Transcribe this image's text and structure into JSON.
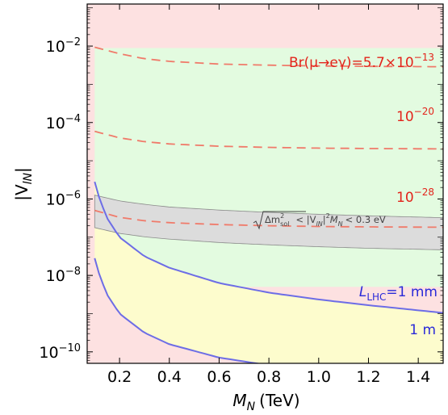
{
  "chart_data": {
    "type": "line",
    "xlabel": "M",
    "xlabel_sub": "N",
    "xlabel_unit": "(TeV)",
    "ylabel": "|V",
    "ylabel_sub": "lN",
    "ylabel_end": "|",
    "xlim": [
      0.07,
      1.5
    ],
    "ylim_log10": [
      -10.3,
      -0.9
    ],
    "x_ticks": [
      0.2,
      0.4,
      0.6,
      0.8,
      1.0,
      1.2,
      1.4
    ],
    "x_tick_labels": [
      "0.2",
      "0.4",
      "0.6",
      "0.8",
      "1.0",
      "1.2",
      "1.4"
    ],
    "y_ticks_exp": [
      -10,
      -8,
      -6,
      -4,
      -2
    ],
    "y_tick_base": "10",
    "y_tick_exps": [
      "−10",
      "−8",
      "−6",
      "−4",
      "−2"
    ],
    "regions": [
      {
        "name": "excluded",
        "color": "#fde1e1"
      },
      {
        "name": "allowed",
        "color": "#e3fbe0"
      },
      {
        "name": "displaced",
        "color": "#fdfccd"
      }
    ],
    "allowed_region_log10": {
      "upper": -2.05,
      "lower_from": "br_20_curve"
    },
    "br_curves": [
      {
        "label": "Br(μ→eγ)=5.7×10",
        "exp": "−13",
        "color": "#f07a6a",
        "x": [
          0.1,
          0.2,
          0.3,
          0.4,
          0.6,
          0.8,
          1.0,
          1.2,
          1.5
        ],
        "y_log10": [
          -2.03,
          -2.2,
          -2.33,
          -2.4,
          -2.47,
          -2.5,
          -2.52,
          -2.53,
          -2.54
        ]
      },
      {
        "label": "10",
        "exp": "−20",
        "color": "#f07a6a",
        "x": [
          0.1,
          0.2,
          0.3,
          0.4,
          0.6,
          0.8,
          1.0,
          1.2,
          1.5
        ],
        "y_log10": [
          -4.23,
          -4.4,
          -4.5,
          -4.56,
          -4.62,
          -4.65,
          -4.67,
          -4.68,
          -4.69
        ]
      },
      {
        "label": "10",
        "exp": "−28",
        "color": "#f07a6a",
        "x": [
          0.1,
          0.2,
          0.3,
          0.4,
          0.6,
          0.8,
          1.0,
          1.2,
          1.5
        ],
        "y_log10": [
          -6.3,
          -6.48,
          -6.57,
          -6.62,
          -6.67,
          -6.7,
          -6.72,
          -6.73,
          -6.74
        ]
      }
    ],
    "solar_band": {
      "label": "< |V",
      "label_sub": "lN",
      "label_mid": "|",
      "label_sup": "2",
      "label_m": "M",
      "label_m_sub": "N",
      "label_end": "< 0.3 eV",
      "label_root": "Δm",
      "label_root_sup": "2",
      "label_root_sub": "sol",
      "color": "#dcdcdc",
      "x": [
        0.1,
        0.2,
        0.3,
        0.4,
        0.6,
        0.8,
        1.0,
        1.2,
        1.5
      ],
      "upper_log10": [
        -5.9,
        -6.05,
        -6.14,
        -6.21,
        -6.29,
        -6.35,
        -6.4,
        -6.44,
        -6.49
      ],
      "lower_log10": [
        -6.75,
        -6.9,
        -6.99,
        -7.05,
        -7.14,
        -7.2,
        -7.25,
        -7.29,
        -7.33
      ]
    },
    "lhc_curves": [
      {
        "label_pre": "L",
        "label_sub": "LHC",
        "label": "=1 mm",
        "color": "#6d6de6",
        "x": [
          0.1,
          0.12,
          0.15,
          0.2,
          0.3,
          0.4,
          0.6,
          0.8,
          1.0,
          1.2,
          1.5
        ],
        "y_log10": [
          -5.55,
          -6.0,
          -6.5,
          -7.0,
          -7.5,
          -7.8,
          -8.2,
          -8.45,
          -8.63,
          -8.78,
          -8.98
        ]
      },
      {
        "label_pre": "",
        "label_sub": "",
        "label": "1 m",
        "color": "#6d6de6",
        "x": [
          0.1,
          0.12,
          0.15,
          0.2,
          0.3,
          0.4,
          0.6,
          0.8,
          1.0,
          1.2,
          1.5
        ],
        "y_log10": [
          -7.55,
          -8.0,
          -8.5,
          -9.0,
          -9.5,
          -9.8,
          -10.15,
          -10.35,
          -10.5,
          -10.62,
          -10.78
        ]
      }
    ]
  }
}
